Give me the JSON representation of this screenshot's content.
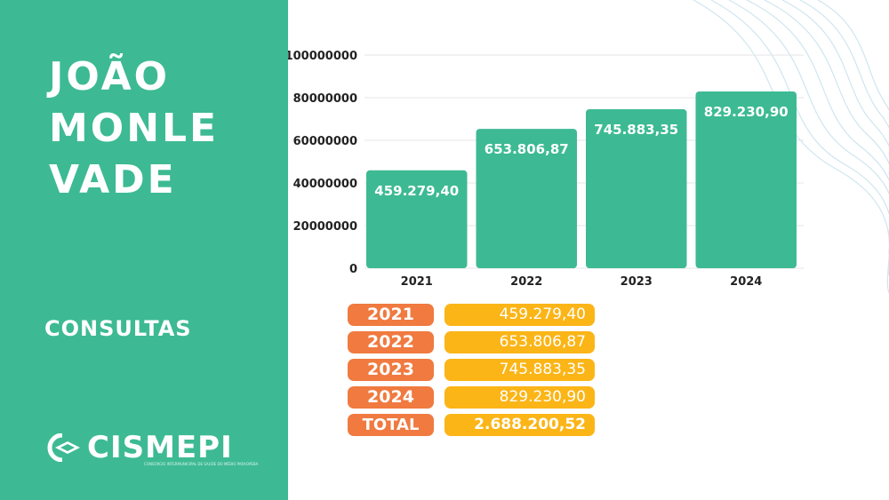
{
  "city_title_lines": [
    "JOÃO",
    "MONLE",
    "VADE"
  ],
  "section_label": "CONSULTAS",
  "logo": {
    "text": "CISMEPI",
    "tagline": "CONSÓRCIO INTERMUNICIPAL DE SAÚDE DO MÉDIO PARAOPEBA"
  },
  "colors": {
    "panel": "#3dba93",
    "bar": "#3dba93",
    "year_pill": "#f07a40",
    "value_pill": "#fbb517"
  },
  "chart_data": {
    "type": "bar",
    "categories": [
      "2021",
      "2022",
      "2023",
      "2024"
    ],
    "values": [
      45927940,
      65380687,
      74588335,
      82923090
    ],
    "data_labels": [
      "459.279,40",
      "653.806,87",
      "745.883,35",
      "829.230,90"
    ],
    "yticks": [
      "0",
      "20000000",
      "40000000",
      "60000000",
      "80000000",
      "100000000"
    ],
    "ylim": [
      0,
      100000000
    ],
    "grid": true
  },
  "summary_table": {
    "rows": [
      {
        "year": "2021",
        "value": "459.279,40"
      },
      {
        "year": "2022",
        "value": "653.806,87"
      },
      {
        "year": "2023",
        "value": "745.883,35"
      },
      {
        "year": "2024",
        "value": "829.230,90"
      }
    ],
    "total_label": "TOTAL",
    "total_value": "2.688.200,52"
  }
}
